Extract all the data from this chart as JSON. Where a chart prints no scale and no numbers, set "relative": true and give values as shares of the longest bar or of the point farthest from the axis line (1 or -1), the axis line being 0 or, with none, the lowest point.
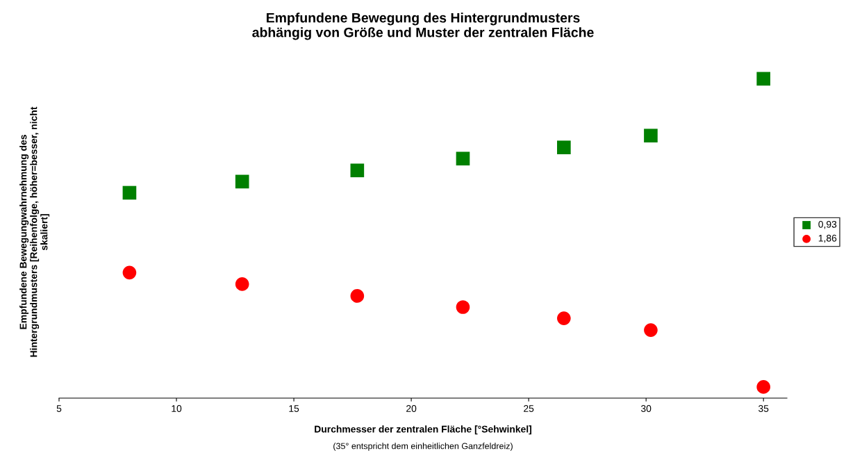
{
  "chart_data": {
    "type": "scatter",
    "title": "Empfundene Bewegung des Hintergrundmusters\nabhängig von Größe und Muster der zentralen Fläche",
    "xlabel": "Durchmesser der zentralen Fläche [°Sehwinkel]",
    "ylabel": "Empfundene Bewegungwahrnehmung des\nHintergrundmusters [Reihenfolge, höher=besser, nicht\nskaliert]",
    "annotations": [
      "(35° entspricht dem einheitlichen Ganzfeldreiz)"
    ],
    "relative": true,
    "x": [
      8,
      12.8,
      17.7,
      22.2,
      26.5,
      30.2,
      35
    ],
    "xlim": [
      5,
      36
    ],
    "xticks": [
      5,
      10,
      15,
      20,
      25,
      30,
      35
    ],
    "grid": false,
    "legend": "right",
    "series": [
      {
        "name": "0,93",
        "color": "#008000",
        "marker": "square",
        "values": [
          0.643,
          0.678,
          0.713,
          0.75,
          0.785,
          0.822,
          1.0
        ]
      },
      {
        "name": "1,86",
        "color": "#ff0000",
        "marker": "circle",
        "values": [
          0.393,
          0.357,
          0.32,
          0.285,
          0.25,
          0.213,
          0.035
        ]
      }
    ]
  }
}
